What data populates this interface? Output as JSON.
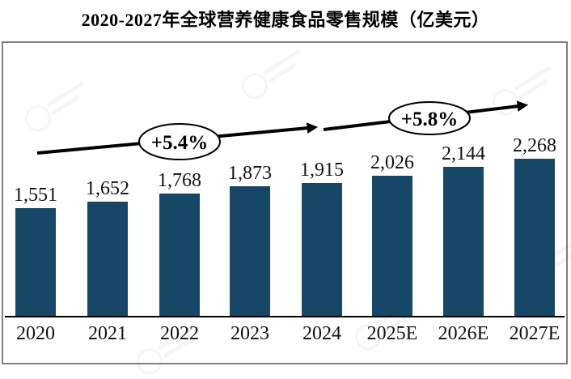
{
  "title": "2020-2027年全球营养健康食品零售规模（亿美元）",
  "chart_data": {
    "type": "bar",
    "title": "2020-2027年全球营养健康食品零售规模（亿美元）",
    "categories": [
      "2020",
      "2021",
      "2022",
      "2023",
      "2024",
      "2025E",
      "2026E",
      "2027E"
    ],
    "values": [
      1551,
      1652,
      1768,
      1873,
      1915,
      2026,
      2144,
      2268
    ],
    "value_labels": [
      "1,551",
      "1,652",
      "1,768",
      "1,873",
      "1,915",
      "2,026",
      "2,144",
      "2,268"
    ],
    "xlabel": "",
    "ylabel": "",
    "ylim": [
      0,
      2650
    ],
    "grid": false,
    "legend": "none",
    "bar_color": "#174766",
    "axis_color": "#000000",
    "frame_color": "#7f7f7f",
    "annotations": [
      {
        "label": "+5.4%",
        "type": "growth-rate"
      },
      {
        "label": "+5.8%",
        "type": "growth-rate"
      }
    ]
  }
}
